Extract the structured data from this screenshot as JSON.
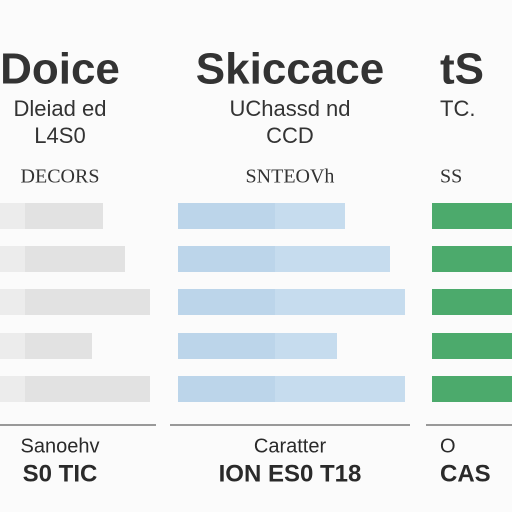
{
  "columns": [
    {
      "title": "Doice",
      "subtitle": "Dleiad ed",
      "code": "L4S0",
      "heading": "DECORS",
      "footer": "Sanoehv",
      "footer_bold": "S0 TIC"
    },
    {
      "title": "Skiccace",
      "subtitle": "UChassd nd",
      "code": "CCD",
      "heading": "SNTEOVh",
      "footer": "Caratter",
      "footer_bold": "ION ES0 T18"
    },
    {
      "title": "tS",
      "subtitle": "TC.",
      "code": "",
      "heading": "SS",
      "footer": "O",
      "footer_bold": "CAS"
    }
  ]
}
